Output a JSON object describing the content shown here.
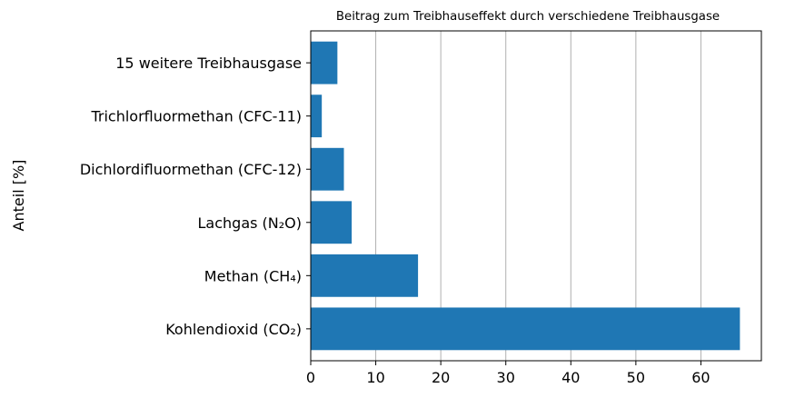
{
  "chart_data": {
    "type": "bar",
    "orientation": "horizontal",
    "title": "Beitrag zum Treibhauseffekt durch verschiedene Treibhausgase",
    "xlabel": "",
    "ylabel": "Anteil [%]",
    "categories": [
      "Kohlendioxid (CO₂)",
      "Methan (CH₄)",
      "Lachgas (N₂O)",
      "Dichlordifluormethan (CFC-12)",
      "Trichlorfluormethan (CFC-11)",
      "15 weitere Treibhausgase"
    ],
    "values": [
      66,
      16.5,
      6.3,
      5.1,
      1.7,
      4.1
    ],
    "xlim": [
      0,
      69.3
    ],
    "xticks": [
      0,
      10,
      20,
      30,
      40,
      50,
      60
    ],
    "grid": "x",
    "colors": {
      "bar": "#1f77b4",
      "grid": "#b0b0b0",
      "axis": "#000000"
    }
  }
}
